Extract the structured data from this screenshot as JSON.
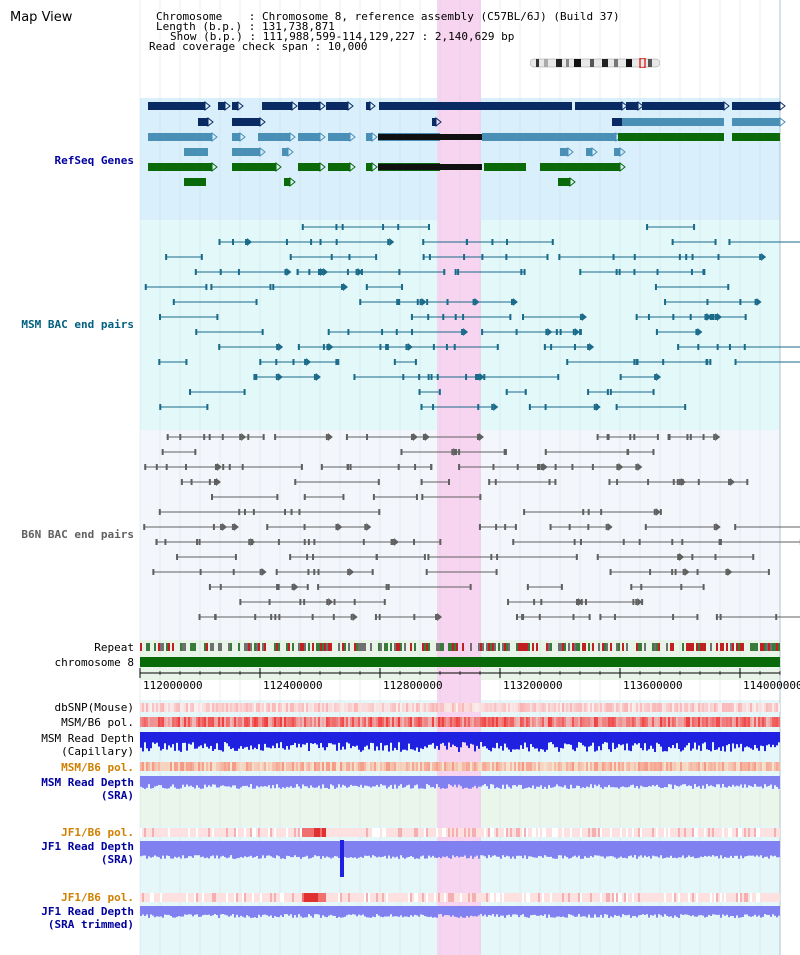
{
  "title": "Map View",
  "info": {
    "chromosome": "Chromosome    : Chromosome 8, reference assembly (C57BL/6J) (Build 37)",
    "length": "Length (b.p.) : 131,738,871",
    "show": "Show (b.p.) : 111,988,599-114,129,227 : 2,140,629 bp",
    "coverage": "Read coverage check span : 10,000"
  },
  "axis": {
    "ticks": [
      "112000000",
      "112400000",
      "112800000",
      "113200000",
      "113600000",
      "114000000"
    ]
  },
  "tracks": {
    "refseq": "RefSeq Genes",
    "msm_bac": "MSM BAC end pairs",
    "b6n_bac": "B6N BAC end pairs",
    "repeat": "Repeat",
    "chrom": "chromosome 8",
    "dbsnp": "dbSNP(Mouse)",
    "msm_pol": "MSM/B6 pol.",
    "msm_depth_cap_1": "MSM Read Depth",
    "msm_depth_cap_2": "(Capillary)",
    "msm_pol2": "MSM/B6 pol.",
    "msm_depth_sra_1": "MSM Read Depth",
    "msm_depth_sra_2": "(SRA)",
    "jf1_pol": "JF1/B6 pol.",
    "jf1_depth_1": "JF1 Read Depth",
    "jf1_depth_2": "(SRA)",
    "jf1_pol2": "JF1/B6 pol.",
    "jf1_trim_1": "JF1 Read Depth",
    "jf1_trim_2": "(SRA trimmed)"
  },
  "colors": {
    "highlight": "#f7d4ef",
    "refseq_bg": "#d9effb",
    "msm_bg": "#e3f8f8",
    "b6n_bg": "#f3f6fb",
    "navy": "#0a2a63",
    "steel": "#4a8fb6",
    "gene_green": "#0a6a0a",
    "label_blue": "#0000a0",
    "label_teal": "#006080",
    "label_orange": "#d08000",
    "depth_blue": "#2020e0",
    "depth_lavender": "#8080f0"
  }
}
